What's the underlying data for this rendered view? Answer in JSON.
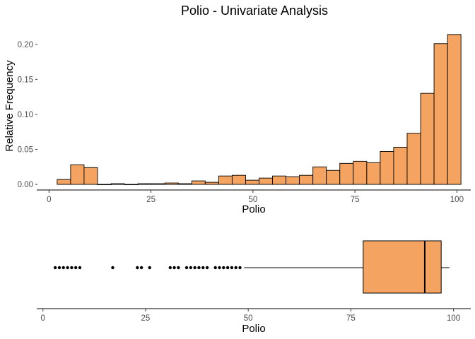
{
  "colors": {
    "fill": "#F4A460",
    "stroke": "#000000",
    "axis": "#000000",
    "text": "#4d4d4d"
  },
  "chart_data": [
    {
      "type": "bar",
      "title": "Polio - Univariate Analysis",
      "xlabel": "Polio",
      "ylabel": "Relative Frequency",
      "xlim": [
        -3,
        103.4
      ],
      "ylim": [
        -0.008,
        0.228
      ],
      "x_ticks": [
        0,
        25,
        50,
        75,
        100
      ],
      "y_ticks": [
        0.0,
        0.05,
        0.1,
        0.15,
        0.2
      ],
      "y_tick_labels": [
        "0.00",
        "0.05",
        "0.10",
        "0.15",
        "0.20"
      ],
      "bin_width": 3.3,
      "bin_starts": [
        2.0,
        5.3,
        8.6,
        11.9,
        15.2,
        18.5,
        21.8,
        25.1,
        28.4,
        31.7,
        35.0,
        38.3,
        41.6,
        44.9,
        48.2,
        51.5,
        54.8,
        58.1,
        61.4,
        64.7,
        68.0,
        71.3,
        74.6,
        77.9,
        81.2,
        84.5,
        87.8,
        91.1,
        94.4,
        97.7
      ],
      "values": [
        0.007,
        0.028,
        0.024,
        0.0,
        0.001,
        0.0,
        0.001,
        0.001,
        0.002,
        0.001,
        0.005,
        0.003,
        0.012,
        0.013,
        0.006,
        0.009,
        0.012,
        0.011,
        0.013,
        0.025,
        0.02,
        0.03,
        0.033,
        0.031,
        0.047,
        0.053,
        0.073,
        0.13,
        0.201,
        0.214
      ]
    },
    {
      "type": "box",
      "xlabel": "Polio",
      "xlim": [
        -1.5,
        104.2
      ],
      "x_ticks": [
        0,
        25,
        50,
        75,
        100
      ],
      "min": 49,
      "q1": 78,
      "median": 93,
      "q3": 97,
      "max": 99,
      "outliers": [
        3,
        4,
        5,
        6,
        7,
        8,
        9,
        17,
        23,
        24,
        26,
        31,
        32,
        33,
        35,
        36,
        37,
        38,
        39,
        40,
        42,
        43,
        44,
        45,
        46,
        47,
        48
      ]
    }
  ]
}
